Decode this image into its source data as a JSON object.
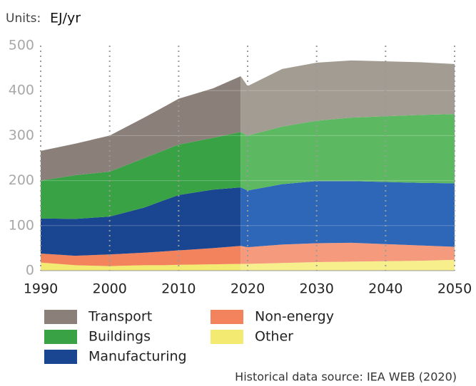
{
  "chart_data": {
    "type": "stacked_area",
    "units_label": "Units:",
    "units": "EJ/yr",
    "source": "Historical data source: IEA WEB (2020)",
    "x": [
      1990,
      1995,
      2000,
      2005,
      2008,
      2010,
      2015,
      2019,
      2020,
      2025,
      2030,
      2035,
      2040,
      2045,
      2050
    ],
    "projection_from": 2019,
    "series": [
      {
        "name": "Other",
        "color": "#f3ea72",
        "projected_color": "#f6ef8c",
        "values": [
          18,
          12,
          10,
          12,
          12,
          13,
          14,
          15,
          15,
          17,
          19,
          20,
          21,
          22,
          24
        ]
      },
      {
        "name": "Non-energy",
        "color": "#f2835c",
        "projected_color": "#f59a7c",
        "values": [
          20,
          21,
          26,
          28,
          31,
          32,
          36,
          40,
          37,
          41,
          42,
          42,
          38,
          34,
          29
        ]
      },
      {
        "name": "Manufacturing",
        "color": "#1a4590",
        "projected_color": "#2e66b8",
        "values": [
          78,
          82,
          84,
          100,
          114,
          123,
          130,
          130,
          126,
          134,
          138,
          137,
          138,
          139,
          141
        ]
      },
      {
        "name": "Buildings",
        "color": "#38a245",
        "projected_color": "#5db862",
        "values": [
          84,
          97,
          100,
          110,
          111,
          112,
          115,
          123,
          122,
          128,
          134,
          141,
          146,
          151,
          154
        ]
      },
      {
        "name": "Transport",
        "color": "#8b8079",
        "projected_color": "#a29c92",
        "values": [
          66,
          70,
          80,
          90,
          97,
          102,
          110,
          124,
          110,
          128,
          129,
          127,
          122,
          117,
          111
        ]
      }
    ],
    "xlim": [
      1990,
      2050
    ],
    "xticks": [
      1990,
      2000,
      2010,
      2020,
      2030,
      2040,
      2050
    ],
    "ylim": [
      0,
      500
    ],
    "yticks": [
      0,
      100,
      200,
      300,
      400,
      500
    ],
    "grid": true
  }
}
